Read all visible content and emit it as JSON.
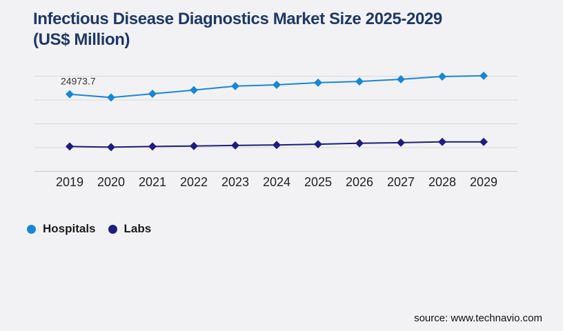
{
  "title_line1": "Infectious Disease Diagnostics Market Size 2025-2029",
  "title_line2": "(US$ Million)",
  "source": "source: www.technavio.com",
  "colors": {
    "background": "#f2f2f4",
    "title": "#1f3864",
    "hospitals": "#1787d6",
    "labs": "#1f1d7c",
    "gridline": "#d9d9d9",
    "axis_line": "#c7c7c7",
    "axis_text": "#1f1f1f"
  },
  "legend": {
    "items": [
      {
        "label": "Hospitals",
        "color": "#1787d6"
      },
      {
        "label": "Labs",
        "color": "#1f1d7c"
      }
    ]
  },
  "chart_data": {
    "type": "line",
    "title": "Infectious Disease Diagnostics Market Size 2025-2029 (US$ Million)",
    "xlabel": "",
    "ylabel": "",
    "categories": [
      "2019",
      "2020",
      "2021",
      "2022",
      "2023",
      "2024",
      "2025",
      "2026",
      "2027",
      "2028",
      "2029"
    ],
    "series": [
      {
        "name": "Hospitals",
        "color": "#1787d6",
        "marker": "diamond",
        "values": [
          24973.7,
          23900,
          25100,
          26300,
          27600,
          28000,
          28700,
          29100,
          29800,
          30700,
          30950
        ],
        "data_label": {
          "index": 0,
          "text": "24973.7"
        }
      },
      {
        "name": "Labs",
        "color": "#1f1d7c",
        "marker": "diamond",
        "values": [
          8050,
          7850,
          8050,
          8200,
          8400,
          8550,
          8800,
          9100,
          9300,
          9550,
          9550
        ]
      }
    ],
    "ylim": [
      0,
      30800
    ],
    "gridlines": 5,
    "grid": "horizontal",
    "legend_position": "bottom-left"
  }
}
